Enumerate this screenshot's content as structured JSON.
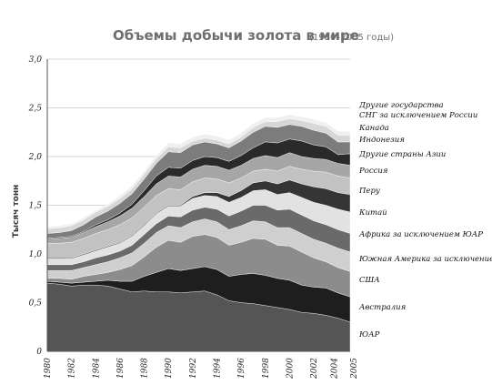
{
  "chart_data": {
    "type": "area",
    "stacked": true,
    "title": "Объемы добычи золота в мире",
    "subtitle": "(1980–2005 годы)",
    "ylabel": "Тысяч тонн",
    "xlabel": "",
    "ylim": [
      0,
      3.0
    ],
    "yticks": [
      "0",
      "0,5",
      "1,0",
      "1,5",
      "2,0",
      "2,5",
      "3,0"
    ],
    "xticks": [
      "1980",
      "1982",
      "1984",
      "1986",
      "1988",
      "1990",
      "1992",
      "1994",
      "1996",
      "1998",
      "2000",
      "2002",
      "2004",
      "2005"
    ],
    "grid": "horizontal",
    "legend_placement": "right",
    "x": [
      1980,
      1981,
      1982,
      1983,
      1984,
      1985,
      1986,
      1987,
      1988,
      1989,
      1990,
      1991,
      1992,
      1993,
      1994,
      1995,
      1996,
      1997,
      1998,
      1999,
      2000,
      2001,
      2002,
      2003,
      2004,
      2005
    ],
    "series": [
      {
        "name": "ЮАР",
        "color": "#555555",
        "values": [
          0.7,
          0.69,
          0.67,
          0.68,
          0.68,
          0.67,
          0.64,
          0.61,
          0.62,
          0.61,
          0.61,
          0.6,
          0.61,
          0.62,
          0.58,
          0.52,
          0.5,
          0.49,
          0.47,
          0.45,
          0.43,
          0.4,
          0.39,
          0.37,
          0.34,
          0.3
        ]
      },
      {
        "name": "Австралия",
        "color": "#1e1e1e",
        "values": [
          0.02,
          0.02,
          0.03,
          0.03,
          0.04,
          0.06,
          0.08,
          0.11,
          0.15,
          0.2,
          0.24,
          0.23,
          0.24,
          0.25,
          0.26,
          0.25,
          0.29,
          0.31,
          0.31,
          0.3,
          0.3,
          0.28,
          0.27,
          0.28,
          0.26,
          0.26
        ]
      },
      {
        "name": "США",
        "color": "#8c8c8c",
        "values": [
          0.03,
          0.04,
          0.04,
          0.06,
          0.07,
          0.08,
          0.12,
          0.16,
          0.2,
          0.26,
          0.29,
          0.29,
          0.33,
          0.33,
          0.33,
          0.32,
          0.33,
          0.36,
          0.37,
          0.34,
          0.35,
          0.34,
          0.3,
          0.27,
          0.26,
          0.26
        ]
      },
      {
        "name": "Южная Америка за исключением Перу",
        "color": "#cfcfcf",
        "values": [
          0.08,
          0.08,
          0.09,
          0.09,
          0.1,
          0.11,
          0.12,
          0.13,
          0.14,
          0.15,
          0.15,
          0.15,
          0.15,
          0.16,
          0.16,
          0.16,
          0.17,
          0.18,
          0.18,
          0.18,
          0.19,
          0.19,
          0.19,
          0.19,
          0.2,
          0.2
        ]
      },
      {
        "name": "Африка за исключением ЮАР",
        "color": "#6a6a6a",
        "values": [
          0.06,
          0.06,
          0.06,
          0.06,
          0.07,
          0.07,
          0.07,
          0.08,
          0.09,
          0.09,
          0.1,
          0.11,
          0.12,
          0.12,
          0.13,
          0.14,
          0.15,
          0.16,
          0.17,
          0.18,
          0.19,
          0.19,
          0.19,
          0.19,
          0.19,
          0.19
        ]
      },
      {
        "name": "Китай",
        "color": "#e2e2e2",
        "values": [
          0.06,
          0.06,
          0.06,
          0.07,
          0.07,
          0.08,
          0.08,
          0.09,
          0.09,
          0.1,
          0.1,
          0.11,
          0.12,
          0.12,
          0.13,
          0.14,
          0.14,
          0.15,
          0.16,
          0.16,
          0.17,
          0.18,
          0.19,
          0.2,
          0.21,
          0.22
        ]
      },
      {
        "name": "Перу",
        "color": "#353535",
        "values": [
          0.01,
          0.01,
          0.01,
          0.01,
          0.01,
          0.01,
          0.01,
          0.01,
          0.01,
          0.01,
          0.01,
          0.01,
          0.02,
          0.03,
          0.04,
          0.06,
          0.07,
          0.08,
          0.09,
          0.11,
          0.13,
          0.14,
          0.16,
          0.17,
          0.17,
          0.18
        ]
      },
      {
        "name": "Россия",
        "color": "#c2c2c2",
        "values": [
          0.15,
          0.15,
          0.16,
          0.16,
          0.17,
          0.17,
          0.18,
          0.18,
          0.18,
          0.18,
          0.17,
          0.16,
          0.15,
          0.15,
          0.14,
          0.14,
          0.13,
          0.12,
          0.12,
          0.13,
          0.14,
          0.15,
          0.16,
          0.17,
          0.17,
          0.17
        ]
      },
      {
        "name": "Другие страны Азии",
        "color": "#a6a6a6",
        "values": [
          0.04,
          0.05,
          0.05,
          0.06,
          0.07,
          0.08,
          0.09,
          0.1,
          0.11,
          0.12,
          0.13,
          0.13,
          0.13,
          0.13,
          0.13,
          0.13,
          0.13,
          0.13,
          0.14,
          0.14,
          0.14,
          0.13,
          0.13,
          0.13,
          0.13,
          0.13
        ]
      },
      {
        "name": "Индонезия",
        "color": "#2a2a2a",
        "values": [
          0.01,
          0.01,
          0.01,
          0.01,
          0.02,
          0.02,
          0.03,
          0.04,
          0.06,
          0.08,
          0.09,
          0.09,
          0.09,
          0.09,
          0.09,
          0.09,
          0.1,
          0.11,
          0.14,
          0.15,
          0.14,
          0.16,
          0.14,
          0.13,
          0.09,
          0.12
        ]
      },
      {
        "name": "Канада",
        "color": "#7c7c7c",
        "values": [
          0.05,
          0.05,
          0.06,
          0.07,
          0.08,
          0.09,
          0.1,
          0.11,
          0.12,
          0.13,
          0.16,
          0.16,
          0.16,
          0.15,
          0.14,
          0.14,
          0.15,
          0.16,
          0.16,
          0.16,
          0.15,
          0.15,
          0.15,
          0.14,
          0.13,
          0.12
        ]
      },
      {
        "name": "СНГ за исключением России",
        "color": "#d7d7d7",
        "values": [
          0.05,
          0.05,
          0.05,
          0.05,
          0.05,
          0.05,
          0.05,
          0.05,
          0.05,
          0.05,
          0.05,
          0.05,
          0.04,
          0.04,
          0.04,
          0.04,
          0.04,
          0.05,
          0.05,
          0.06,
          0.06,
          0.06,
          0.07,
          0.07,
          0.07,
          0.07
        ]
      },
      {
        "name": "Другие государства",
        "color": "#efefef",
        "values": [
          0.02,
          0.02,
          0.02,
          0.02,
          0.02,
          0.02,
          0.03,
          0.03,
          0.03,
          0.03,
          0.04,
          0.04,
          0.04,
          0.04,
          0.04,
          0.04,
          0.04,
          0.04,
          0.04,
          0.04,
          0.04,
          0.04,
          0.04,
          0.04,
          0.04,
          0.04
        ]
      }
    ]
  }
}
